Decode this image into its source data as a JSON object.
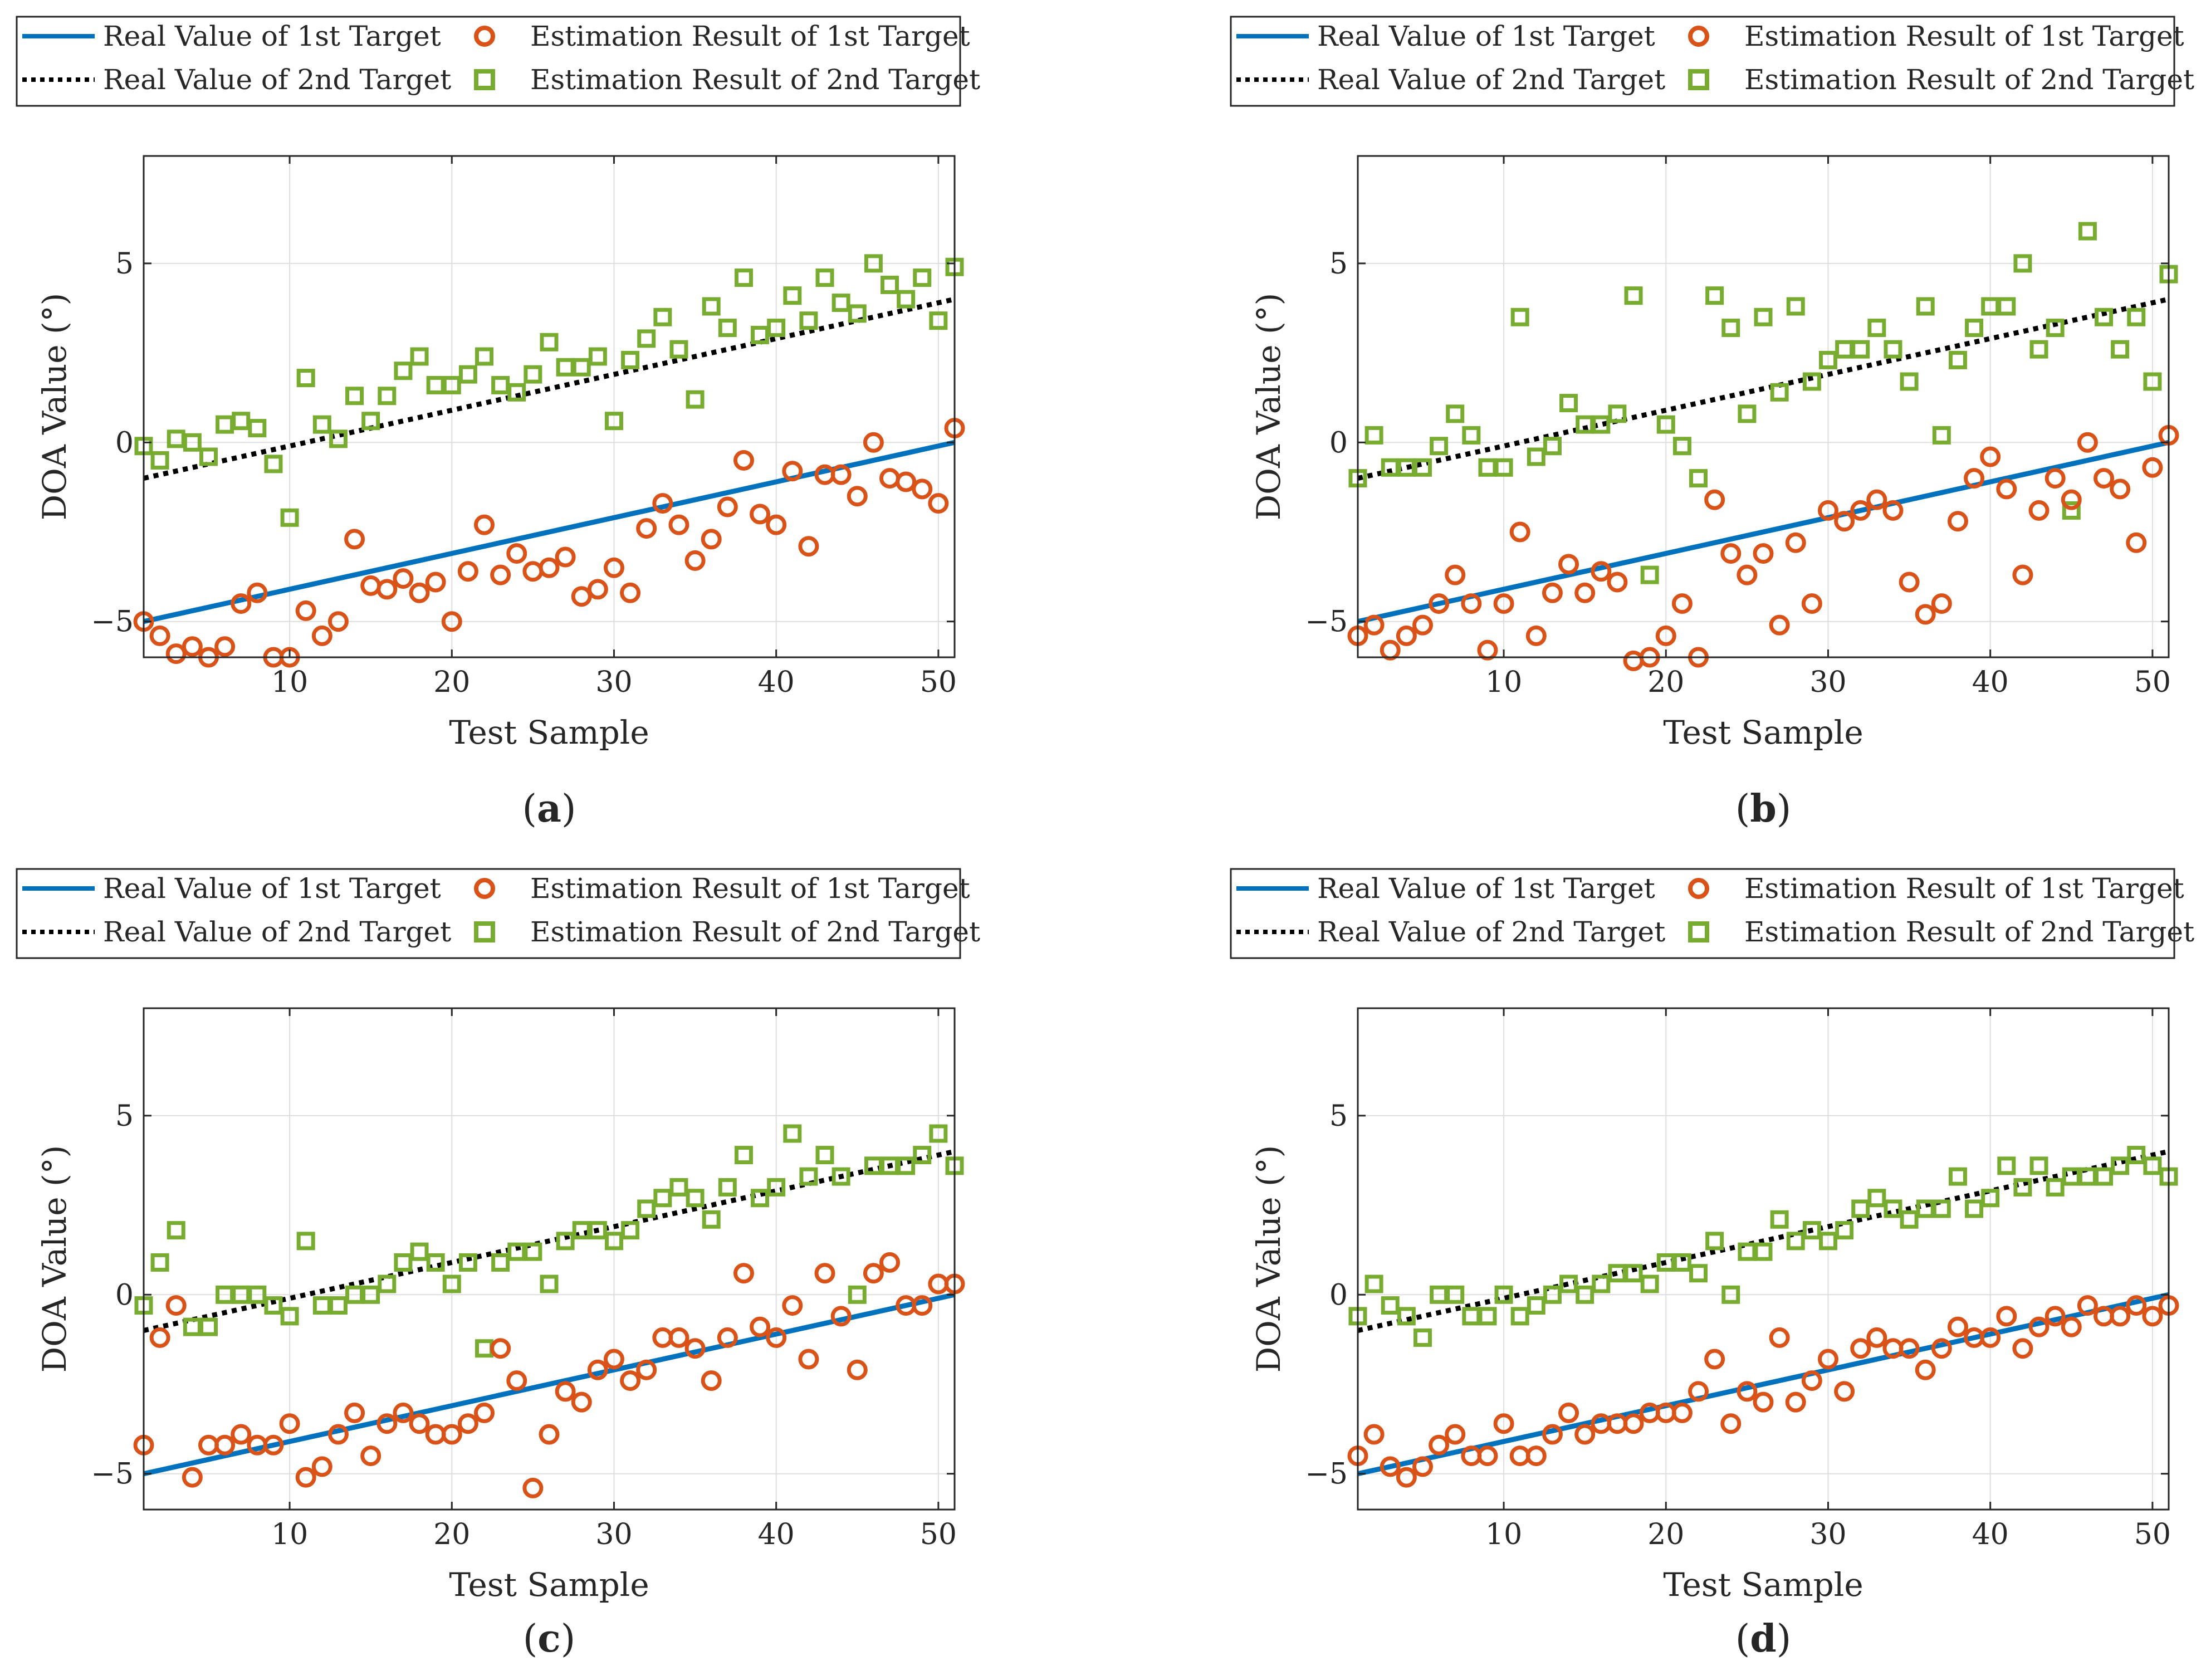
{
  "figure": {
    "panels": [
      "a",
      "b",
      "c",
      "d"
    ]
  },
  "colors": {
    "real_first": "#0072BD",
    "real_second": "#000000",
    "est_first": "#D95319",
    "est_second": "#77AC30",
    "grid": "#dedede",
    "axis": "#262626"
  },
  "chart_data": [
    {
      "id": "a",
      "type": "scatter",
      "caption": "a",
      "xlabel": "Test Sample",
      "ylabel": "DOA Value (°)",
      "xlim": [
        1,
        51
      ],
      "ylim": [
        -6,
        8
      ],
      "xticks": [
        10,
        20,
        30,
        40,
        50
      ],
      "yticks": [
        -5,
        0,
        5
      ],
      "ytick_labels": [
        "−5",
        "0",
        "5"
      ],
      "grid": true,
      "legend": {
        "placement": "top",
        "entries": [
          "Real Value of 1st Target",
          "Real Value of 2nd Target",
          "Estimation Result of 1st Target",
          "Estimation Result of 2nd Target"
        ]
      },
      "real_lines": [
        {
          "name": "Real Value of 1st Target",
          "x": [
            1,
            51
          ],
          "y": [
            -5,
            0
          ]
        },
        {
          "name": "Real Value of 2nd Target",
          "x": [
            1,
            51
          ],
          "y": [
            -1,
            4
          ]
        }
      ],
      "series": [
        {
          "name": "Estimation Result of 1st Target",
          "marker": "circle",
          "values": [
            -5.0,
            -5.4,
            -5.9,
            -5.7,
            -6.0,
            -5.7,
            -4.5,
            -4.2,
            -6.0,
            -6.0,
            -4.7,
            -5.4,
            -5.0,
            -2.7,
            -4.0,
            -4.1,
            -3.8,
            -4.2,
            -3.9,
            -5.0,
            -3.6,
            -2.3,
            -3.7,
            -3.1,
            -3.6,
            -3.5,
            -3.2,
            -4.3,
            -4.1,
            -3.5,
            -4.2,
            -2.4,
            -1.7,
            -2.3,
            -3.3,
            -2.7,
            -1.8,
            -0.5,
            -2.0,
            -2.3,
            -0.8,
            -2.9,
            -0.9,
            -0.9,
            -1.5,
            0.0,
            -1.0,
            -1.1,
            -1.3,
            -1.7,
            0.4
          ]
        },
        {
          "name": "Estimation Result of 2nd Target",
          "marker": "square",
          "values": [
            -0.1,
            -0.5,
            0.1,
            0.0,
            -0.4,
            0.5,
            0.6,
            0.4,
            -0.6,
            -2.1,
            1.8,
            0.5,
            0.1,
            1.3,
            0.6,
            1.3,
            2.0,
            2.4,
            1.6,
            1.6,
            1.9,
            2.4,
            1.6,
            1.4,
            1.9,
            2.8,
            2.1,
            2.1,
            2.4,
            0.6,
            2.3,
            2.9,
            3.5,
            2.6,
            1.2,
            3.8,
            3.2,
            4.6,
            3.0,
            3.2,
            4.1,
            3.4,
            4.6,
            3.9,
            3.6,
            5.0,
            4.4,
            4.0,
            4.6,
            3.4,
            4.9
          ]
        }
      ]
    },
    {
      "id": "b",
      "type": "scatter",
      "caption": "b",
      "xlabel": "Test Sample",
      "ylabel": "DOA Value (°)",
      "xlim": [
        1,
        51
      ],
      "ylim": [
        -6,
        8
      ],
      "xticks": [
        10,
        20,
        30,
        40,
        50
      ],
      "yticks": [
        -5,
        0,
        5
      ],
      "ytick_labels": [
        "−5",
        "0",
        "5"
      ],
      "grid": true,
      "legend": {
        "placement": "top",
        "entries": [
          "Real Value of 1st Target",
          "Real Value of 2nd Target",
          "Estimation Result of 1st Target",
          "Estimation Result of 2nd Target"
        ]
      },
      "real_lines": [
        {
          "name": "Real Value of 1st Target",
          "x": [
            1,
            51
          ],
          "y": [
            -5,
            0
          ]
        },
        {
          "name": "Real Value of 2nd Target",
          "x": [
            1,
            51
          ],
          "y": [
            -1,
            4
          ]
        }
      ],
      "series": [
        {
          "name": "Estimation Result of 1st Target",
          "marker": "circle",
          "values": [
            -5.4,
            -5.1,
            -5.8,
            -5.4,
            -5.1,
            -4.5,
            -3.7,
            -4.5,
            -5.8,
            -4.5,
            -2.5,
            -5.4,
            -4.2,
            -3.4,
            -4.2,
            -3.6,
            -3.9,
            -6.1,
            -6.0,
            -5.4,
            -4.5,
            -6.0,
            -1.6,
            -3.1,
            -3.7,
            -3.1,
            -5.1,
            -2.8,
            -4.5,
            -1.9,
            -2.2,
            -1.9,
            -1.6,
            -1.9,
            -3.9,
            -4.8,
            -4.5,
            -2.2,
            -1.0,
            -0.4,
            -1.3,
            -3.7,
            -1.9,
            -1.0,
            -1.6,
            0.0,
            -1.0,
            -1.3,
            -2.8,
            -0.7,
            0.2
          ]
        },
        {
          "name": "Estimation Result of 2nd Target",
          "marker": "square",
          "values": [
            -1.0,
            0.2,
            -0.7,
            -0.7,
            -0.7,
            -0.1,
            0.8,
            0.2,
            -0.7,
            -0.7,
            3.5,
            -0.4,
            -0.1,
            1.1,
            0.5,
            0.5,
            0.8,
            4.1,
            -3.7,
            0.5,
            -0.1,
            -1.0,
            4.1,
            3.2,
            0.8,
            3.5,
            1.4,
            3.8,
            1.7,
            2.3,
            2.6,
            2.6,
            3.2,
            2.6,
            1.7,
            3.8,
            0.2,
            2.3,
            3.2,
            3.8,
            3.8,
            5.0,
            2.6,
            3.2,
            -1.9,
            5.9,
            3.5,
            2.6,
            3.5,
            1.7,
            4.7
          ]
        }
      ]
    },
    {
      "id": "c",
      "type": "scatter",
      "caption": "c",
      "xlabel": "Test Sample",
      "ylabel": "DOA Value (°)",
      "xlim": [
        1,
        51
      ],
      "ylim": [
        -6,
        8
      ],
      "xticks": [
        10,
        20,
        30,
        40,
        50
      ],
      "yticks": [
        -5,
        0,
        5
      ],
      "ytick_labels": [
        "−5",
        "0",
        "5"
      ],
      "grid": true,
      "legend": {
        "placement": "top",
        "entries": [
          "Real Value of 1st Target",
          "Real Value of 2nd Target",
          "Estimation Result of 1st Target",
          "Estimation Result of 2nd Target"
        ]
      },
      "real_lines": [
        {
          "name": "Real Value of 1st Target",
          "x": [
            1,
            51
          ],
          "y": [
            -5,
            0
          ]
        },
        {
          "name": "Real Value of 2nd Target",
          "x": [
            1,
            51
          ],
          "y": [
            -1,
            4
          ]
        }
      ],
      "series": [
        {
          "name": "Estimation Result of 1st Target",
          "marker": "circle",
          "values": [
            -4.2,
            -1.2,
            -0.3,
            -5.1,
            -4.2,
            -4.2,
            -3.9,
            -4.2,
            -4.2,
            -3.6,
            -5.1,
            -4.8,
            -3.9,
            -3.3,
            -4.5,
            -3.6,
            -3.3,
            -3.6,
            -3.9,
            -3.9,
            -3.6,
            -3.3,
            -1.5,
            -2.4,
            -5.4,
            -3.9,
            -2.7,
            -3.0,
            -2.1,
            -1.8,
            -2.4,
            -2.1,
            -1.2,
            -1.2,
            -1.5,
            -2.4,
            -1.2,
            0.6,
            -0.9,
            -1.2,
            -0.3,
            -1.8,
            0.6,
            -0.6,
            -2.1,
            0.6,
            0.9,
            -0.3,
            -0.3,
            0.3,
            0.3
          ]
        },
        {
          "name": "Estimation Result of 2nd Target",
          "marker": "square",
          "values": [
            -0.3,
            0.9,
            1.8,
            -0.9,
            -0.9,
            0.0,
            0.0,
            0.0,
            -0.3,
            -0.6,
            1.5,
            -0.3,
            -0.3,
            0.0,
            0.0,
            0.3,
            0.9,
            1.2,
            0.9,
            0.3,
            0.9,
            -1.5,
            0.9,
            1.2,
            1.2,
            0.3,
            1.5,
            1.8,
            1.8,
            1.5,
            1.8,
            2.4,
            2.7,
            3.0,
            2.7,
            2.1,
            3.0,
            3.9,
            2.7,
            3.0,
            4.5,
            3.3,
            3.9,
            3.3,
            0.0,
            3.6,
            3.6,
            3.6,
            3.9,
            4.5,
            3.6
          ]
        }
      ]
    },
    {
      "id": "d",
      "type": "scatter",
      "caption": "d",
      "xlabel": "Test Sample",
      "ylabel": "DOA Value (°)",
      "xlim": [
        1,
        51
      ],
      "ylim": [
        -6,
        8
      ],
      "xticks": [
        10,
        20,
        30,
        40,
        50
      ],
      "yticks": [
        -5,
        0,
        5
      ],
      "ytick_labels": [
        "−5",
        "0",
        "5"
      ],
      "grid": true,
      "legend": {
        "placement": "top",
        "entries": [
          "Real Value of 1st Target",
          "Real Value of 2nd Target",
          "Estimation Result of 1st Target",
          "Estimation Result of 2nd Target"
        ]
      },
      "real_lines": [
        {
          "name": "Real Value of 1st Target",
          "x": [
            1,
            51
          ],
          "y": [
            -5,
            0
          ]
        },
        {
          "name": "Real Value of 2nd Target",
          "x": [
            1,
            51
          ],
          "y": [
            -1,
            4
          ]
        }
      ],
      "series": [
        {
          "name": "Estimation Result of 1st Target",
          "marker": "circle",
          "values": [
            -4.5,
            -3.9,
            -4.8,
            -5.1,
            -4.8,
            -4.2,
            -3.9,
            -4.5,
            -4.5,
            -3.6,
            -4.5,
            -4.5,
            -3.9,
            -3.3,
            -3.9,
            -3.6,
            -3.6,
            -3.6,
            -3.3,
            -3.3,
            -3.3,
            -2.7,
            -1.8,
            -3.6,
            -2.7,
            -3.0,
            -1.2,
            -3.0,
            -2.4,
            -1.8,
            -2.7,
            -1.5,
            -1.2,
            -1.5,
            -1.5,
            -2.1,
            -1.5,
            -0.9,
            -1.2,
            -1.2,
            -0.6,
            -1.5,
            -0.9,
            -0.6,
            -0.9,
            -0.3,
            -0.6,
            -0.6,
            -0.3,
            -0.6,
            -0.3
          ]
        },
        {
          "name": "Estimation Result of 2nd Target",
          "marker": "square",
          "values": [
            -0.6,
            0.3,
            -0.3,
            -0.6,
            -1.2,
            0.0,
            0.0,
            -0.6,
            -0.6,
            0.0,
            -0.6,
            -0.3,
            0.0,
            0.3,
            0.0,
            0.3,
            0.6,
            0.6,
            0.3,
            0.9,
            0.9,
            0.6,
            1.5,
            0.0,
            1.2,
            1.2,
            2.1,
            1.5,
            1.8,
            1.5,
            1.8,
            2.4,
            2.7,
            2.4,
            2.1,
            2.4,
            2.4,
            3.3,
            2.4,
            2.7,
            3.6,
            3.0,
            3.6,
            3.0,
            3.3,
            3.3,
            3.3,
            3.6,
            3.9,
            3.6,
            3.3
          ]
        }
      ]
    }
  ]
}
